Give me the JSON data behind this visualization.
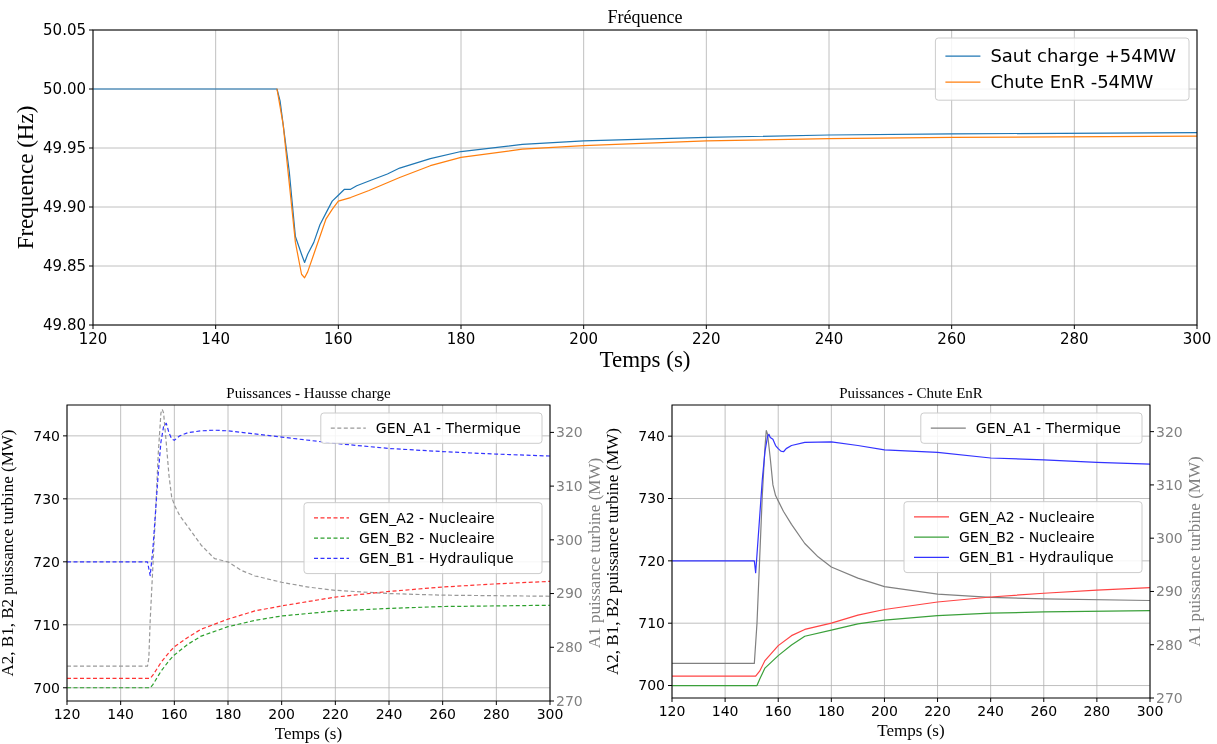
{
  "chart_data": [
    {
      "type": "line",
      "title": "Fréquence",
      "xlabel": "Temps (s)",
      "ylabel": "Frequence (Hz)",
      "xlim": [
        120,
        300
      ],
      "xticks": [
        120,
        140,
        160,
        180,
        200,
        220,
        240,
        260,
        280,
        300
      ],
      "ylim": [
        49.8,
        50.05
      ],
      "yticks": [
        {
          "value": 49.8,
          "label": "49.80"
        },
        {
          "value": 49.85,
          "label": "49.85"
        },
        {
          "value": 49.9,
          "label": "49.90"
        },
        {
          "value": 49.95,
          "label": "49.95"
        },
        {
          "value": 50,
          "label": "50.00"
        },
        {
          "value": 50.05,
          "label": "50.05"
        }
      ],
      "grid": true,
      "legend": "top right",
      "line_style": "solid",
      "series": [
        {
          "name": "Saut charge +54MW",
          "color": "#1f77b4",
          "x": [
            120,
            150,
            150.5,
            152,
            153,
            154,
            154.5,
            155,
            156,
            157,
            158,
            159,
            160,
            161,
            162,
            163,
            165,
            168,
            170,
            175,
            180,
            190,
            200,
            220,
            240,
            260,
            300
          ],
          "values": [
            50,
            50,
            49.99,
            49.93,
            49.875,
            49.86,
            49.853,
            49.86,
            49.87,
            49.885,
            49.895,
            49.905,
            49.91,
            49.915,
            49.915,
            49.918,
            49.922,
            49.928,
            49.933,
            49.941,
            49.947,
            49.953,
            49.956,
            49.959,
            49.961,
            49.962,
            49.963
          ]
        },
        {
          "name": "Chute EnR -54MW",
          "color": "#ff7f0e",
          "x": [
            150,
            151,
            152,
            153,
            154,
            154.5,
            155,
            156,
            157,
            158,
            159,
            160,
            162,
            165,
            170,
            175,
            180,
            190,
            200,
            220,
            240,
            260,
            300
          ],
          "values": [
            50,
            49.97,
            49.92,
            49.87,
            49.843,
            49.84,
            49.845,
            49.86,
            49.875,
            49.89,
            49.898,
            49.905,
            49.908,
            49.914,
            49.925,
            49.935,
            49.942,
            49.949,
            49.952,
            49.956,
            49.958,
            49.959,
            49.96
          ]
        }
      ]
    },
    {
      "type": "line",
      "title": "Puissances - Hausse charge",
      "xlabel": "Temps (s)",
      "ylabel": "A2, B1, B2 puissance turbine (MW)",
      "y2label": "A1 puissance turbine (MW)",
      "xlim": [
        120,
        300
      ],
      "xticks": [
        120,
        140,
        160,
        180,
        200,
        220,
        240,
        260,
        280,
        300
      ],
      "ylim": [
        697.9,
        744.9
      ],
      "yticks": [
        700,
        710,
        720,
        730,
        740
      ],
      "y2lim": [
        270,
        325.1
      ],
      "y2ticks": [
        270,
        280,
        290,
        300,
        310,
        320
      ],
      "grid": true,
      "legend": "right",
      "line_style": "dashed",
      "series": [
        {
          "name": "GEN_A1 - Thermique",
          "color": "#999999",
          "axis": "y2",
          "x": [
            120,
            150,
            150.5,
            151,
            152,
            153,
            154,
            155,
            155.5,
            156,
            157,
            158,
            159,
            160,
            162,
            165,
            170,
            175,
            180,
            185,
            190,
            200,
            210,
            220,
            240,
            260,
            280,
            300
          ],
          "values": [
            276.5,
            276.5,
            278,
            285,
            295,
            305,
            316,
            323.6,
            324.3,
            323.6,
            318,
            312,
            308,
            306.5,
            304.5,
            302.5,
            299,
            296.5,
            295.9,
            294.3,
            293.3,
            292.1,
            291.2,
            290.6,
            290,
            289.7,
            289.6,
            289.5
          ]
        },
        {
          "name": "GEN_A2 - Nucleaire",
          "color": "#ff3333",
          "x": [
            120,
            151,
            152,
            155,
            158,
            160,
            165,
            170,
            180,
            190,
            200,
            220,
            240,
            260,
            280,
            300
          ],
          "values": [
            701.5,
            701.5,
            702,
            704,
            705.6,
            706.5,
            708,
            709.3,
            710.9,
            712.2,
            713,
            714.4,
            715.3,
            716,
            716.5,
            716.9
          ]
        },
        {
          "name": "GEN_B2 - Nucleaire",
          "color": "#2ca02c",
          "x": [
            120,
            151,
            152,
            155,
            158,
            160,
            165,
            170,
            180,
            190,
            200,
            220,
            240,
            260,
            280,
            300
          ],
          "values": [
            700,
            700,
            700.5,
            702.6,
            704.3,
            705.2,
            706.9,
            708.2,
            709.7,
            710.7,
            711.4,
            712.2,
            712.6,
            712.9,
            713,
            713.1
          ]
        },
        {
          "name": "GEN_B1 - Hydraulique",
          "color": "#3333ff",
          "x": [
            120,
            150,
            151,
            152,
            153,
            154,
            155,
            156,
            157,
            158,
            159,
            160,
            162,
            165,
            170,
            175,
            180,
            190,
            200,
            220,
            240,
            260,
            280,
            300
          ],
          "values": [
            720,
            720,
            717.8,
            722,
            728,
            734,
            739,
            741.5,
            742,
            740.5,
            739.5,
            739.3,
            740,
            740.5,
            740.8,
            740.9,
            740.8,
            740.3,
            739.8,
            738.8,
            738,
            737.5,
            737.1,
            736.8
          ]
        }
      ]
    },
    {
      "type": "line",
      "title": "Puissances - Chute EnR",
      "xlabel": "Temps (s)",
      "ylabel": "A2, B1, B2 puissance turbine (MW)",
      "y2label": "A1 puissance turbine (MW)",
      "xlim": [
        120,
        300
      ],
      "xticks": [
        120,
        140,
        160,
        180,
        200,
        220,
        240,
        260,
        280,
        300
      ],
      "ylim": [
        698,
        745
      ],
      "yticks": [
        700,
        710,
        720,
        730,
        740
      ],
      "y2lim": [
        270,
        325
      ],
      "y2ticks": [
        270,
        280,
        290,
        300,
        310,
        320
      ],
      "grid": true,
      "legend": "right",
      "line_style": "solid",
      "series": [
        {
          "name": "GEN_A1 - Thermique",
          "color": "#808080",
          "axis": "y2",
          "x": [
            120,
            151,
            152,
            153,
            154,
            155,
            155.5,
            156,
            157,
            158,
            159,
            160,
            162,
            165,
            170,
            175,
            180,
            190,
            200,
            220,
            240,
            260,
            300
          ],
          "values": [
            276.5,
            276.5,
            284,
            296,
            308,
            317,
            320.2,
            319.5,
            315,
            310,
            308,
            307,
            305,
            302.6,
            299,
            296.5,
            294.6,
            292.5,
            290.9,
            289.5,
            288.9,
            288.6,
            288.3
          ]
        },
        {
          "name": "GEN_A2 - Nucleaire",
          "color": "#ff4444",
          "x": [
            120,
            151.5,
            153,
            155,
            160,
            165,
            170,
            180,
            190,
            200,
            220,
            240,
            260,
            280,
            300
          ],
          "values": [
            701.5,
            701.5,
            702.3,
            704,
            706.4,
            708,
            709,
            710,
            711.3,
            712.2,
            713.4,
            714.2,
            714.8,
            715.3,
            715.7
          ]
        },
        {
          "name": "GEN_B2 - Nucleaire",
          "color": "#3aa03a",
          "x": [
            120,
            152,
            153,
            155,
            160,
            165,
            170,
            180,
            190,
            200,
            220,
            240,
            260,
            300
          ],
          "values": [
            700,
            700,
            701,
            702.8,
            704.8,
            706.5,
            707.9,
            708.9,
            709.9,
            710.5,
            711.2,
            711.6,
            711.8,
            712
          ]
        },
        {
          "name": "GEN_B1 - Hydraulique",
          "color": "#3333ff",
          "x": [
            120,
            151,
            151.5,
            152,
            153,
            154,
            155,
            156,
            156.5,
            157,
            158,
            159,
            160,
            161,
            162,
            163,
            165,
            170,
            180,
            190,
            200,
            220,
            240,
            260,
            280,
            300
          ],
          "values": [
            720,
            720,
            718.1,
            721,
            727,
            733,
            737.5,
            740,
            740.3,
            739.8,
            739.5,
            738.5,
            738,
            737.6,
            737.5,
            738,
            738.5,
            739,
            739.1,
            738.5,
            737.8,
            737.4,
            736.5,
            736.2,
            735.8,
            735.5
          ]
        }
      ]
    }
  ]
}
